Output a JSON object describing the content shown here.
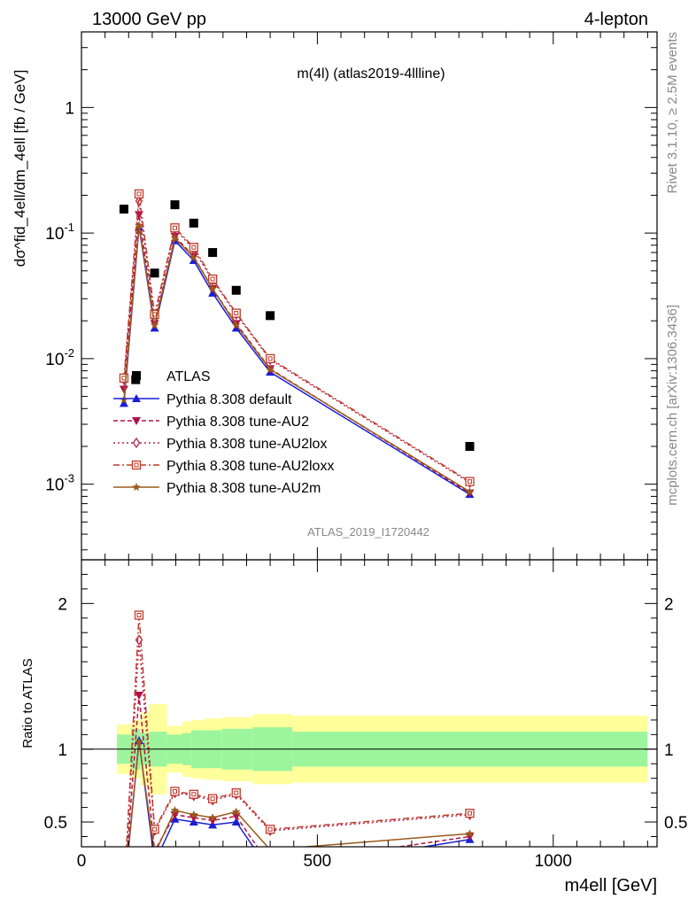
{
  "header": {
    "left": "13000 GeV pp",
    "right": "4-lepton"
  },
  "side_labels": {
    "rivet": "Rivet 3.1.10, ≥ 2.5M events",
    "source": "mcplots.cern.ch [arXiv:1306.3436]"
  },
  "chart_data": {
    "type": "scatter",
    "title": "m(4l) (atlas2019-4llline)",
    "watermark": "ATLAS_2019_I1720442",
    "xlabel": "m4ell [GeV]",
    "x_range": [
      0,
      1220
    ],
    "x_ticks": [
      0,
      500,
      1000
    ],
    "main": {
      "ylabel": "dσ^fid_4ell/dm_4ell [fb / GeV]",
      "yscale": "log",
      "y_range": [
        0.00025,
        4
      ],
      "y_tick_labels": [
        "1",
        "10^-1",
        "10^-2",
        "10^-3"
      ]
    },
    "ratio": {
      "ylabel": "Ratio to ATLAS",
      "y_range": [
        0.33,
        2.3
      ],
      "y_ticks": [
        0.5,
        1,
        2
      ]
    },
    "data": {
      "name": "ATLAS",
      "x": [
        90,
        115,
        155,
        198,
        238,
        278,
        328,
        400,
        823
      ],
      "y": [
        0.155,
        0.0068,
        0.048,
        0.168,
        0.12,
        0.07,
        0.035,
        0.022,
        0.002
      ]
    },
    "ratio_bands": {
      "edges": [
        75,
        105,
        125,
        143,
        181,
        214,
        233,
        260,
        298,
        363,
        447,
        1200
      ],
      "inner": [
        0.1,
        0.14,
        0.11,
        0.12,
        0.1,
        0.11,
        0.13,
        0.13,
        0.14,
        0.15,
        0.12
      ],
      "outer": [
        0.17,
        0.2,
        0.25,
        0.31,
        0.16,
        0.19,
        0.2,
        0.21,
        0.22,
        0.24,
        0.23
      ],
      "inner_color": "#9cf59c",
      "outer_color": "#ffff9c"
    },
    "series": [
      {
        "name": "Pythia 8.308 default",
        "color": "#1a1fd4",
        "dash": "",
        "marker": "triangle-up",
        "x": [
          90,
          122,
          155,
          198,
          238,
          278,
          328,
          400,
          823
        ],
        "y": [
          0.0044,
          0.112,
          0.0175,
          0.087,
          0.0605,
          0.0333,
          0.0175,
          0.0078,
          0.00083
        ],
        "ratio": [
          0.0,
          1.06,
          0.22,
          0.52,
          0.5,
          0.48,
          0.5,
          0.16,
          0.38
        ]
      },
      {
        "name": "Pythia 8.308 tune-AU2",
        "color": "#b0124a",
        "dash": "5,3",
        "marker": "triangle-down",
        "x": [
          90,
          122,
          155,
          198,
          238,
          278,
          328,
          400,
          823
        ],
        "y": [
          0.0057,
          0.14,
          0.019,
          0.094,
          0.065,
          0.036,
          0.019,
          0.0083,
          0.00085
        ],
        "ratio": [
          0.0,
          1.37,
          0.3,
          0.55,
          0.53,
          0.51,
          0.54,
          0.2,
          0.4
        ]
      },
      {
        "name": "Pythia 8.308 tune-AU2lox",
        "color": "#b5224a",
        "dash": "2,3",
        "marker": "diamond-open",
        "x": [
          90,
          122,
          155,
          198,
          238,
          278,
          328,
          400,
          823
        ],
        "y": [
          0.0068,
          0.18,
          0.021,
          0.108,
          0.074,
          0.042,
          0.0225,
          0.0098,
          0.00103
        ],
        "ratio": [
          0.0,
          1.75,
          0.44,
          0.7,
          0.68,
          0.65,
          0.69,
          0.44,
          0.55
        ]
      },
      {
        "name": "Pythia 8.308 tune-AU2loxx",
        "color": "#bf3b2b",
        "dash": "7,3,2,3",
        "marker": "square-open",
        "x": [
          90,
          122,
          155,
          198,
          238,
          278,
          328,
          400,
          823
        ],
        "y": [
          0.007,
          0.205,
          0.0225,
          0.11,
          0.077,
          0.043,
          0.023,
          0.01,
          0.00105
        ],
        "ratio": [
          0.0,
          1.92,
          0.45,
          0.71,
          0.69,
          0.66,
          0.7,
          0.45,
          0.56
        ]
      },
      {
        "name": "Pythia 8.308 tune-AU2m",
        "color": "#9b5a1a",
        "dash": "",
        "marker": "star",
        "x": [
          90,
          122,
          155,
          198,
          238,
          278,
          328,
          400,
          823
        ],
        "y": [
          0.0047,
          0.115,
          0.0185,
          0.091,
          0.064,
          0.036,
          0.0185,
          0.0082,
          0.00087
        ],
        "ratio": [
          0.0,
          1.05,
          0.28,
          0.58,
          0.55,
          0.53,
          0.57,
          0.31,
          0.42
        ]
      }
    ]
  }
}
